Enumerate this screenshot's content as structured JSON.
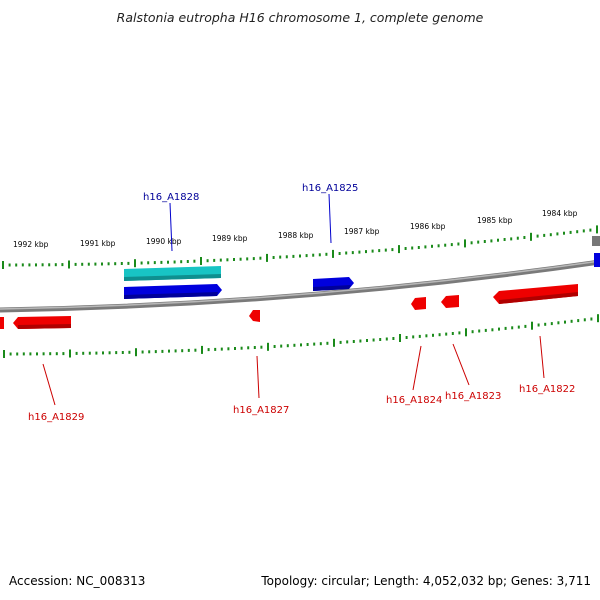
{
  "title": "Ralstonia eutropha H16 chromosome 1, complete genome",
  "footer": {
    "accession": "Accession: NC_008313",
    "summary": "Topology: circular; Length: 4,052,032 bp; Genes: 3,711"
  },
  "scale_labels": [
    "1992 kbp",
    "1991 kbp",
    "1990 kbp",
    "1989 kbp",
    "1988 kbp",
    "1987 kbp",
    "1986 kbp",
    "1985 kbp",
    "1984 kbp"
  ],
  "colors": {
    "forward_gene": "#0000dd",
    "forward_gene_alt": "#18c4c4",
    "reverse_gene": "#ee0000",
    "backbone": "#888888",
    "tick": "#1a8a1a",
    "forward_label": "#000099",
    "reverse_label": "#cc0000"
  },
  "genes": [
    {
      "name": "h16_A1828",
      "strand": "forward"
    },
    {
      "name": "h16_A1825",
      "strand": "forward"
    },
    {
      "name": "h16_A1829",
      "strand": "reverse"
    },
    {
      "name": "h16_A1827",
      "strand": "reverse"
    },
    {
      "name": "h16_A1824",
      "strand": "reverse"
    },
    {
      "name": "h16_A1823",
      "strand": "reverse"
    },
    {
      "name": "h16_A1822",
      "strand": "reverse"
    }
  ]
}
